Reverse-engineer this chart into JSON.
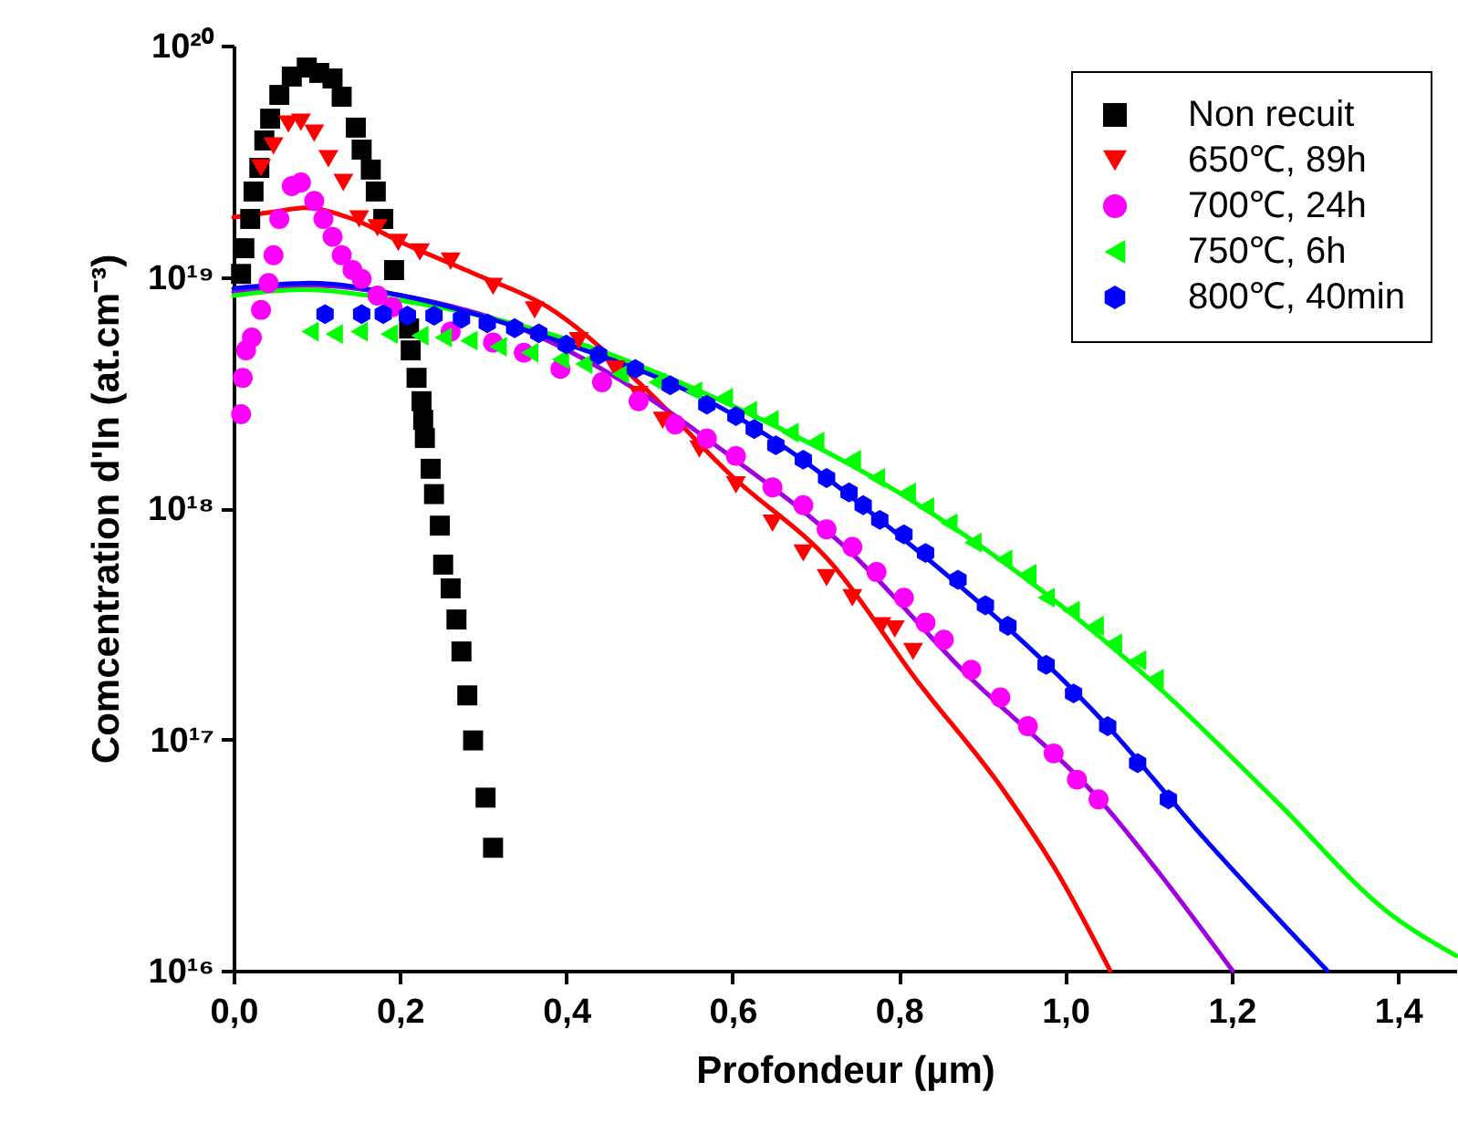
{
  "chart_data": {
    "type": "scatter",
    "xlabel": "Profondeur (µm)",
    "ylabel": "Comcentration d'In (at.cm⁻³)",
    "log": "y",
    "xlim": [
      0,
      1.47
    ],
    "xticks": [
      {
        "value": 0,
        "label": "0,0"
      },
      {
        "value": 0.2,
        "label": "0,2"
      },
      {
        "value": 0.4,
        "label": "0,4"
      },
      {
        "value": 0.6,
        "label": "0,6"
      },
      {
        "value": 0.8,
        "label": "0,8"
      },
      {
        "value": 1.0,
        "label": "1,0"
      },
      {
        "value": 1.2,
        "label": "1,2"
      },
      {
        "value": 1.4,
        "label": "1,4"
      }
    ],
    "ylim": [
      1e+16,
      1e+20
    ],
    "yticks": [
      {
        "value": 1e+16,
        "label": "10¹⁶"
      },
      {
        "value": 1e+17,
        "label": "10¹⁷"
      },
      {
        "value": 1e+18,
        "label": "10¹⁸"
      },
      {
        "value": 1e+19,
        "label": "10¹⁹"
      },
      {
        "value": 1e+20,
        "label": "10²⁰"
      }
    ],
    "grid": false,
    "legend": "top right",
    "series": [
      {
        "type": "line",
        "color": "#ff0000",
        "x": [
          0,
          0.048,
          0.086,
          0.143,
          0.202,
          0.29,
          0.378,
          0.487,
          0.597,
          0.722,
          0.82,
          0.926,
          0.992,
          1.054
        ],
        "values": [
          1.81e+19,
          1.91e+19,
          1.99e+19,
          1.78e+19,
          1.41e+19,
          1.03e+19,
          7.4e+18,
          3.5e+18,
          1.4e+18,
          5.6e+17,
          1.83e+17,
          6e+16,
          2.6e+16,
          1e+16
        ]
      },
      {
        "type": "line",
        "color": "#a000e0",
        "x": [
          0,
          0.092,
          0.202,
          0.334,
          0.487,
          0.597,
          0.735,
          0.876,
          1.051,
          1.124,
          1.201
        ],
        "values": [
          8.6e+18,
          9.2e+18,
          8.3e+18,
          6.2e+18,
          3.2e+18,
          1.68e+18,
          6.8e+17,
          2e+17,
          5e+16,
          2.35e+16,
          1e+16
        ]
      },
      {
        "type": "line",
        "color": "#00ff00",
        "x": [
          0,
          0.081,
          0.202,
          0.378,
          0.597,
          0.817,
          1.108,
          1.256,
          1.387,
          1.47
        ],
        "values": [
          8.3e+18,
          8.8e+18,
          7.9e+18,
          5.7e+18,
          2.8e+18,
          1.07e+18,
          1.73e+17,
          5.3e+16,
          1.8e+16,
          1.16e+16
        ]
      },
      {
        "type": "line",
        "color": "#0000ff",
        "x": [
          0,
          0.092,
          0.202,
          0.378,
          0.604,
          0.817,
          1.051,
          1.168,
          1.315
        ],
        "values": [
          8.9e+18,
          9.4e+18,
          8.3e+18,
          5.47e+18,
          2.5e+18,
          6.8e+17,
          1.14e+17,
          3.7e+16,
          1e+16
        ]
      },
      {
        "name": "Non recuit",
        "marker": "square",
        "color": "#000000",
        "x": [
          0.009,
          0.013,
          0.02,
          0.024,
          0.031,
          0.037,
          0.044,
          0.055,
          0.07,
          0.088,
          0.103,
          0.119,
          0.13,
          0.147,
          0.154,
          0.165,
          0.171,
          0.18,
          0.193,
          0.211,
          0.213,
          0.22,
          0.226,
          0.228,
          0.23,
          0.237,
          0.241,
          0.248,
          0.252,
          0.261,
          0.268,
          0.274,
          0.281,
          0.288,
          0.303,
          0.312
        ],
        "values": [
          1.03e+19,
          1.33e+19,
          1.78e+19,
          2.34e+19,
          2.96e+19,
          3.89e+19,
          4.83e+19,
          6.12e+19,
          7.35e+19,
          8.04e+19,
          7.62e+19,
          7.21e+19,
          6.01e+19,
          4.42e+19,
          3.55e+19,
          2.91e+19,
          2.34e+19,
          1.78e+19,
          1.07e+19,
          5.98e+18,
          4.81e+18,
          3.66e+18,
          2.9e+18,
          2.41e+18,
          2.01e+18,
          1.48e+18,
          1.15e+18,
          8.4e+17,
          5.7e+17,
          4.5e+17,
          3.3e+17,
          2.4e+17,
          1.55e+17,
          9.9e+16,
          5.6e+16,
          3.4e+16
        ]
      },
      {
        "name": "650℃, 89h",
        "marker": "triangle-down",
        "color": "#ff0000",
        "x": [
          0.033,
          0.048,
          0.066,
          0.081,
          0.097,
          0.114,
          0.132,
          0.151,
          0.173,
          0.198,
          0.224,
          0.261,
          0.312,
          0.362,
          0.415,
          0.459,
          0.487,
          0.516,
          0.56,
          0.604,
          0.648,
          0.685,
          0.713,
          0.744,
          0.779,
          0.795,
          0.817
        ],
        "values": [
          2.96e+19,
          3.68e+19,
          4.58e+19,
          4.66e+19,
          4.18e+19,
          3.24e+19,
          2.56e+19,
          1.78e+19,
          1.63e+19,
          1.41e+19,
          1.28e+19,
          1.17e+19,
          9.1e+18,
          7.2e+18,
          5.3e+18,
          4e+18,
          3.1e+18,
          2.4e+18,
          1.8e+18,
          1.26e+18,
          8.6e+17,
          6.4e+17,
          5e+17,
          4.1e+17,
          3.1e+17,
          3e+17,
          2.4e+17
        ]
      },
      {
        "name": "700℃, 24h",
        "marker": "circle",
        "color": "#ff00ff",
        "x": [
          0.009,
          0.011,
          0.015,
          0.022,
          0.033,
          0.042,
          0.048,
          0.055,
          0.07,
          0.081,
          0.097,
          0.108,
          0.119,
          0.13,
          0.143,
          0.154,
          0.173,
          0.191,
          0.261,
          0.312,
          0.349,
          0.393,
          0.443,
          0.487,
          0.531,
          0.569,
          0.604,
          0.648,
          0.685,
          0.713,
          0.744,
          0.773,
          0.806,
          0.832,
          0.854,
          0.887,
          0.922,
          0.955,
          0.986,
          1.014,
          1.04
        ],
        "values": [
          2.55e+18,
          3.66e+18,
          4.81e+18,
          5.47e+18,
          7.2e+18,
          9.4e+18,
          1.24e+19,
          1.78e+19,
          2.47e+19,
          2.56e+19,
          2.13e+19,
          1.78e+19,
          1.49e+19,
          1.24e+19,
          1.07e+19,
          9.8e+18,
          8.3e+18,
          7.4e+18,
          5.8e+18,
          5.2e+18,
          4.7e+18,
          4e+18,
          3.5e+18,
          2.9e+18,
          2.3e+18,
          2e+18,
          1.68e+18,
          1.23e+18,
          1.03e+18,
          8.1e+17,
          6.8e+17,
          5.3e+17,
          4.1e+17,
          3.2e+17,
          2.7e+17,
          2e+17,
          1.52e+17,
          1.14e+17,
          8.7e+16,
          6.7e+16,
          5.5e+16
        ]
      },
      {
        "name": "750℃, 6h",
        "marker": "triangle-left",
        "color": "#00ff00",
        "x": [
          0.092,
          0.121,
          0.151,
          0.187,
          0.224,
          0.252,
          0.283,
          0.318,
          0.356,
          0.393,
          0.421,
          0.465,
          0.509,
          0.553,
          0.59,
          0.619,
          0.645,
          0.669,
          0.7,
          0.744,
          0.773,
          0.81,
          0.832,
          0.86,
          0.889,
          0.926,
          0.955,
          0.977,
          1.007,
          1.036,
          1.058,
          1.087,
          1.108
        ],
        "values": [
          5.8e+18,
          5.66e+18,
          5.8e+18,
          5.66e+18,
          5.57e+18,
          5.47e+18,
          5.3e+18,
          4.99e+18,
          4.7e+18,
          4.4e+18,
          4.2e+18,
          3.8e+18,
          3.5e+18,
          3.2e+18,
          3e+18,
          2.64e+18,
          2.41e+18,
          2.12e+18,
          1.94e+18,
          1.62e+18,
          1.35e+18,
          1.17e+18,
          1.01e+18,
          8.6e+17,
          7.1e+17,
          6e+17,
          5.2e+17,
          4.1e+17,
          3.6e+17,
          3.1e+17,
          2.6e+17,
          2.2e+17,
          1.83e+17
        ]
      },
      {
        "name": "800℃, 40min",
        "color": "#0000ff",
        "x": [
          0.11,
          0.154,
          0.18,
          0.209,
          0.241,
          0.274,
          0.305,
          0.338,
          0.367,
          0.4,
          0.439,
          0.483,
          0.525,
          0.569,
          0.604,
          0.626,
          0.652,
          0.685,
          0.713,
          0.74,
          0.757,
          0.777,
          0.806,
          0.832,
          0.871,
          0.904,
          0.931,
          0.977,
          1.01,
          1.051,
          1.087,
          1.124
        ],
        "values": [
          6.9e+18,
          6.9e+18,
          6.9e+18,
          6.8e+18,
          6.8e+18,
          6.6e+18,
          6.3e+18,
          6e+18,
          5.7e+18,
          5.1e+18,
          4.6e+18,
          4e+18,
          3.4e+18,
          2.8e+18,
          2.5e+18,
          2.2e+18,
          1.87e+18,
          1.62e+18,
          1.35e+18,
          1.17e+18,
          1.03e+18,
          8.9e+17,
          7.7e+17,
          6.4e+17,
          4.9e+17,
          3.8e+17,
          3.1e+17,
          2.1e+17,
          1.58e+17,
          1.14e+17,
          7.9e+16,
          5.5e+16
        ]
      }
    ]
  }
}
